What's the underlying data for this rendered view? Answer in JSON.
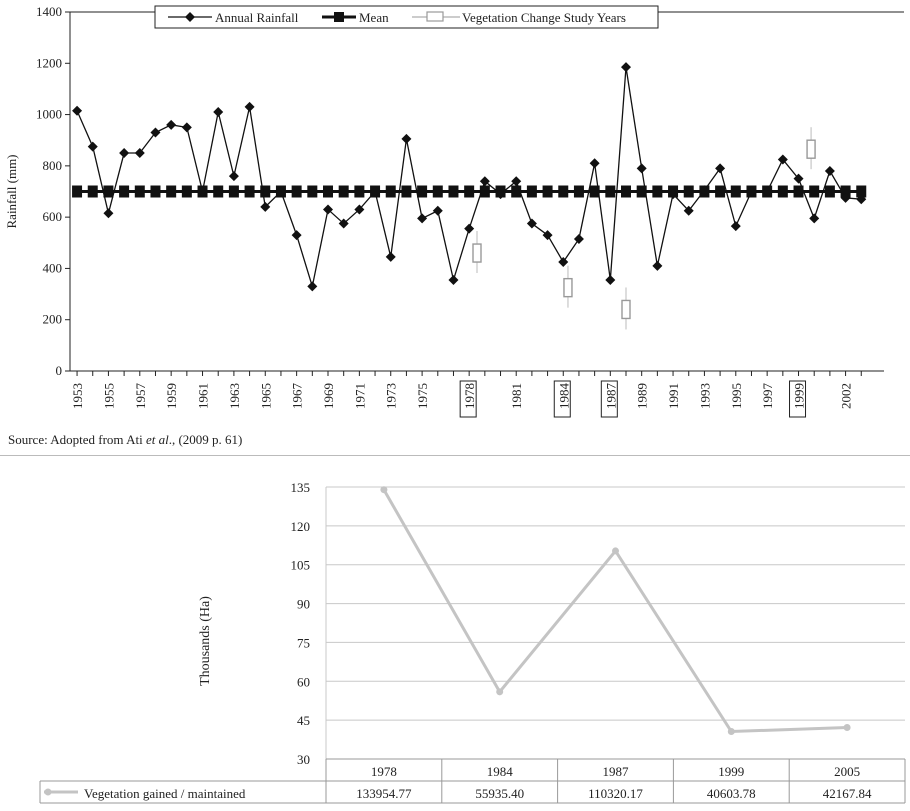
{
  "chart_data": [
    {
      "type": "line",
      "ylabel": "Rainfall (mm)",
      "ylim": [
        0,
        1400
      ],
      "yticks": [
        0,
        200,
        400,
        600,
        800,
        1000,
        1200,
        1400
      ],
      "xlim": [
        1953,
        2004
      ],
      "xtick_labels": [
        "1953",
        "1955",
        "1957",
        "1959",
        "1961",
        "1963",
        "1965",
        "1967",
        "1969",
        "1971",
        "1973",
        "1975",
        "1978",
        "1981",
        "1984",
        "1987",
        "1989",
        "1991",
        "1993",
        "1995",
        "1997",
        "1999",
        "2002"
      ],
      "boxed_ticks": [
        "1978",
        "1984",
        "1987",
        "1999"
      ],
      "legend_position": "top",
      "series": [
        {
          "name": "Annual Rainfall",
          "color": "#111111",
          "x": [
            1953,
            1954,
            1955,
            1956,
            1957,
            1958,
            1959,
            1960,
            1961,
            1962,
            1963,
            1964,
            1965,
            1966,
            1967,
            1968,
            1969,
            1970,
            1971,
            1972,
            1973,
            1974,
            1975,
            1976,
            1977,
            1978,
            1979,
            1980,
            1981,
            1982,
            1983,
            1984,
            1985,
            1986,
            1987,
            1988,
            1989,
            1990,
            1991,
            1992,
            1993,
            1994,
            1995,
            1996,
            1997,
            1998,
            1999,
            2000,
            2001,
            2002,
            2003
          ],
          "y": [
            1015,
            875,
            615,
            850,
            850,
            930,
            960,
            950,
            700,
            1010,
            760,
            1030,
            640,
            700,
            530,
            330,
            630,
            575,
            630,
            700,
            445,
            905,
            595,
            625,
            355,
            555,
            740,
            690,
            740,
            575,
            530,
            425,
            515,
            810,
            355,
            1185,
            790,
            410,
            690,
            625,
            705,
            790,
            565,
            700,
            700,
            825,
            750,
            595,
            780,
            675,
            670
          ]
        },
        {
          "name": "Mean",
          "color": "#111111",
          "x": [
            1953,
            1954,
            1955,
            1956,
            1957,
            1958,
            1959,
            1960,
            1961,
            1962,
            1963,
            1964,
            1965,
            1966,
            1967,
            1968,
            1969,
            1970,
            1971,
            1972,
            1973,
            1974,
            1975,
            1976,
            1977,
            1978,
            1979,
            1980,
            1981,
            1982,
            1983,
            1984,
            1985,
            1986,
            1987,
            1988,
            1989,
            1990,
            1991,
            1992,
            1993,
            1994,
            1995,
            1996,
            1997,
            1998,
            1999,
            2000,
            2001,
            2002,
            2003
          ],
          "y": [
            700,
            700,
            700,
            700,
            700,
            700,
            700,
            700,
            700,
            700,
            700,
            700,
            700,
            700,
            700,
            700,
            700,
            700,
            700,
            700,
            700,
            700,
            700,
            700,
            700,
            700,
            700,
            700,
            700,
            700,
            700,
            700,
            700,
            700,
            700,
            700,
            700,
            700,
            700,
            700,
            700,
            700,
            700,
            700,
            700,
            700,
            700,
            700,
            700,
            700,
            700
          ]
        },
        {
          "name": "Vegetation Change Study Years",
          "color": "#999999",
          "x": [
            1978.5,
            1984.3,
            1988.0,
            1999.8
          ],
          "y": [
            460,
            325,
            240,
            865
          ]
        }
      ]
    },
    {
      "type": "line",
      "ylabel": "Thousands (Ha)",
      "ylim": [
        30,
        135
      ],
      "yticks": [
        30,
        45,
        60,
        75,
        90,
        105,
        120,
        135
      ],
      "categories": [
        "1978",
        "1984",
        "1987",
        "1999",
        "2005"
      ],
      "series": [
        {
          "name": "Vegetation gained / maintained",
          "color": "#c4c4c4",
          "values": [
            133.95477,
            55.9354,
            110.32017,
            40.60378,
            42.16784
          ],
          "labels": [
            "133954.77",
            "55935.40",
            "110320.17",
            "40603.78",
            "42167.84"
          ]
        }
      ]
    }
  ],
  "source": {
    "prefix": "Source: Adopted from Ati ",
    "italic": "et al",
    "suffix": "., (2009 p. 61)"
  }
}
